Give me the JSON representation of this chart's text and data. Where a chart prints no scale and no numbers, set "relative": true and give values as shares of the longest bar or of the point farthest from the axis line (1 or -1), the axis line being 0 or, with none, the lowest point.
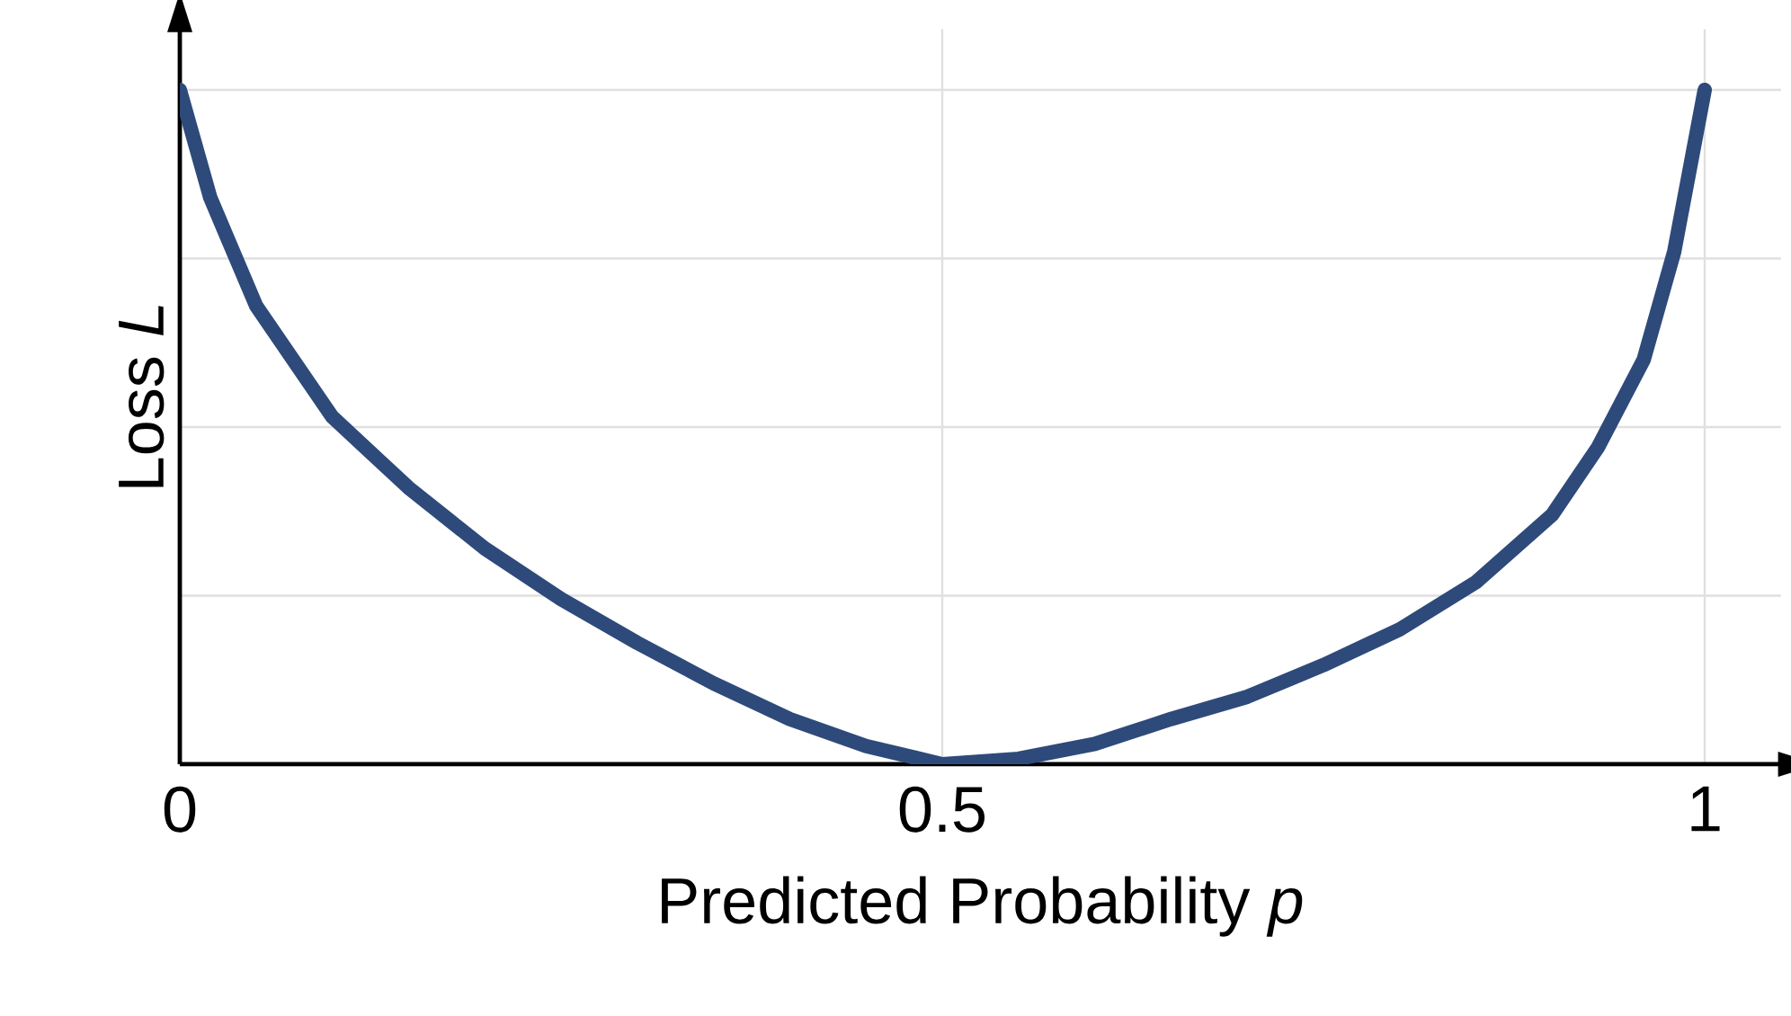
{
  "chart_data": {
    "type": "line",
    "xlabel": "Predicted Probability *p*",
    "ylabel": "Loss *L*",
    "relative": true,
    "grid": true,
    "xlim": [
      0,
      1.05
    ],
    "xticks": [
      0,
      0.5,
      1
    ],
    "x": [
      0,
      0.02,
      0.05,
      0.1,
      0.15,
      0.2,
      0.25,
      0.3,
      0.35,
      0.4,
      0.45,
      0.5,
      0.55,
      0.6,
      0.65,
      0.7,
      0.75,
      0.8,
      0.85,
      0.9,
      0.93,
      0.96,
      0.98,
      1
    ],
    "series": [
      {
        "color": "#2e4a7a",
        "values": [
          1.0,
          0.84,
          0.68,
          0.515,
          0.41,
          0.32,
          0.245,
          0.18,
          0.12,
          0.067,
          0.027,
          0,
          0.008,
          0.03,
          0.067,
          0.1,
          0.147,
          0.2,
          0.27,
          0.37,
          0.47,
          0.6,
          0.76,
          1.0
        ]
      }
    ]
  }
}
